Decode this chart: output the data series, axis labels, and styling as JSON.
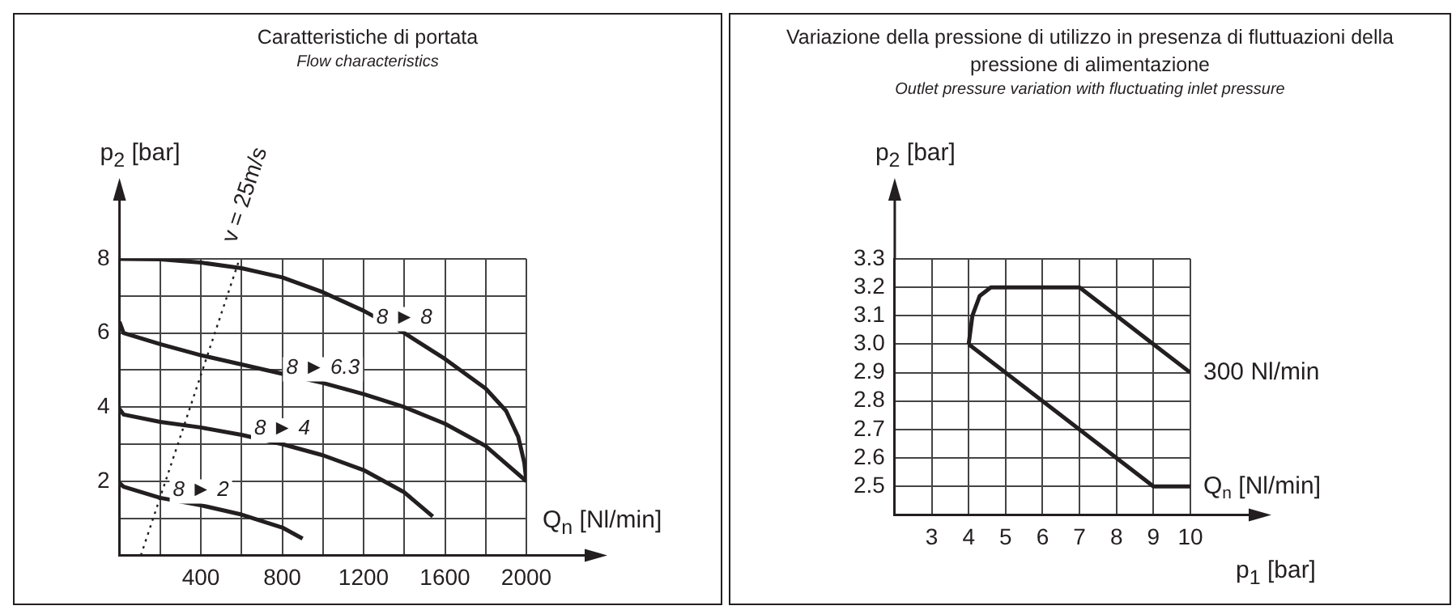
{
  "chart_data": [
    {
      "type": "line",
      "title": "Caratteristiche di portata",
      "subtitle": "Flow characteristics",
      "xlabel": "Q$_{n}$ [Nl/min]",
      "ylabel": "p$_{2}$ [bar]",
      "xlim": [
        0,
        2000
      ],
      "ylim": [
        0,
        8
      ],
      "xticks": [
        {
          "value": 200,
          "label": null
        },
        400,
        {
          "value": 600,
          "label": null
        },
        800,
        {
          "value": 1000,
          "label": null
        },
        1200,
        {
          "value": 1400,
          "label": null
        },
        1600,
        {
          "value": 1800,
          "label": null
        },
        2000
      ],
      "yticks": [
        {
          "value": 1,
          "label": null
        },
        2,
        {
          "value": 3,
          "label": null
        },
        4,
        {
          "value": 5,
          "label": null
        },
        6,
        {
          "value": 7,
          "label": null
        },
        8
      ],
      "grid": true,
      "line_style": "solid",
      "series": [
        {
          "name": "8 ► 8",
          "color": "#231f20",
          "x": [
            0,
            200,
            400,
            600,
            800,
            1000,
            1200,
            1400,
            1600,
            1800,
            1900,
            1960,
            1990,
            2000
          ],
          "values": [
            8,
            7.99,
            7.9,
            7.75,
            7.5,
            7.1,
            6.6,
            6.0,
            5.3,
            4.5,
            3.9,
            3.2,
            2.5,
            2.0
          ]
        },
        {
          "name": "8 ► 6.3",
          "color": "#231f20",
          "x": [
            0,
            20,
            200,
            400,
            600,
            800,
            1000,
            1200,
            1400,
            1600,
            1800,
            2000
          ],
          "values": [
            6.3,
            6.0,
            5.7,
            5.4,
            5.15,
            4.9,
            4.65,
            4.35,
            4.0,
            3.55,
            2.95,
            2.0
          ]
        },
        {
          "name": "8 ► 4",
          "color": "#231f20",
          "x": [
            0,
            20,
            200,
            400,
            600,
            800,
            1000,
            1200,
            1400,
            1540
          ],
          "values": [
            3.95,
            3.8,
            3.6,
            3.45,
            3.25,
            3.0,
            2.7,
            2.3,
            1.7,
            1.05
          ]
        },
        {
          "name": "8 ► 2",
          "color": "#231f20",
          "x": [
            0,
            20,
            200,
            400,
            600,
            800,
            900
          ],
          "values": [
            1.95,
            1.85,
            1.55,
            1.35,
            1.1,
            0.75,
            0.45
          ]
        },
        {
          "name": "v = 25m/s",
          "color": "#231f20",
          "line_style": "dotted",
          "x": [
            105,
            590
          ],
          "values": [
            0,
            8
          ]
        }
      ]
    },
    {
      "type": "line",
      "title": "Variazione della pressione di utilizzo in presenza di fluttuazioni della pressione di alimentazione",
      "subtitle": "Outlet pressure variation with fluctuating inlet pressure",
      "xlabel": "p$_{1}$ [bar]",
      "ylabel": "p$_{2}$ [bar]",
      "xlim": [
        2,
        10
      ],
      "ylim": [
        2.4,
        3.3
      ],
      "xticks": [
        3,
        4,
        5,
        6,
        7,
        8,
        9,
        10
      ],
      "yticks": [
        2.5,
        2.6,
        2.7,
        2.8,
        2.9,
        {
          "value": 3,
          "label": "3.0"
        },
        3.1,
        3.2,
        3.3
      ],
      "grid": true,
      "line_style": "solid",
      "series": [
        {
          "name": "300 Nl/min",
          "color": "#231f20",
          "x": [
            4,
            4.1,
            4.3,
            4.6,
            5,
            7,
            8,
            9,
            10
          ],
          "values": [
            3.0,
            3.1,
            3.17,
            3.2,
            3.2,
            3.2,
            3.1,
            3.0,
            2.9
          ]
        },
        {
          "color": "#231f20",
          "x": [
            4,
            9,
            10
          ],
          "values": [
            3.0,
            2.5,
            2.5
          ]
        }
      ],
      "annotations": [
        {
          "text": "Q$_{n}$ [Nl/min]",
          "x": 10,
          "y": 2.5
        }
      ]
    }
  ]
}
